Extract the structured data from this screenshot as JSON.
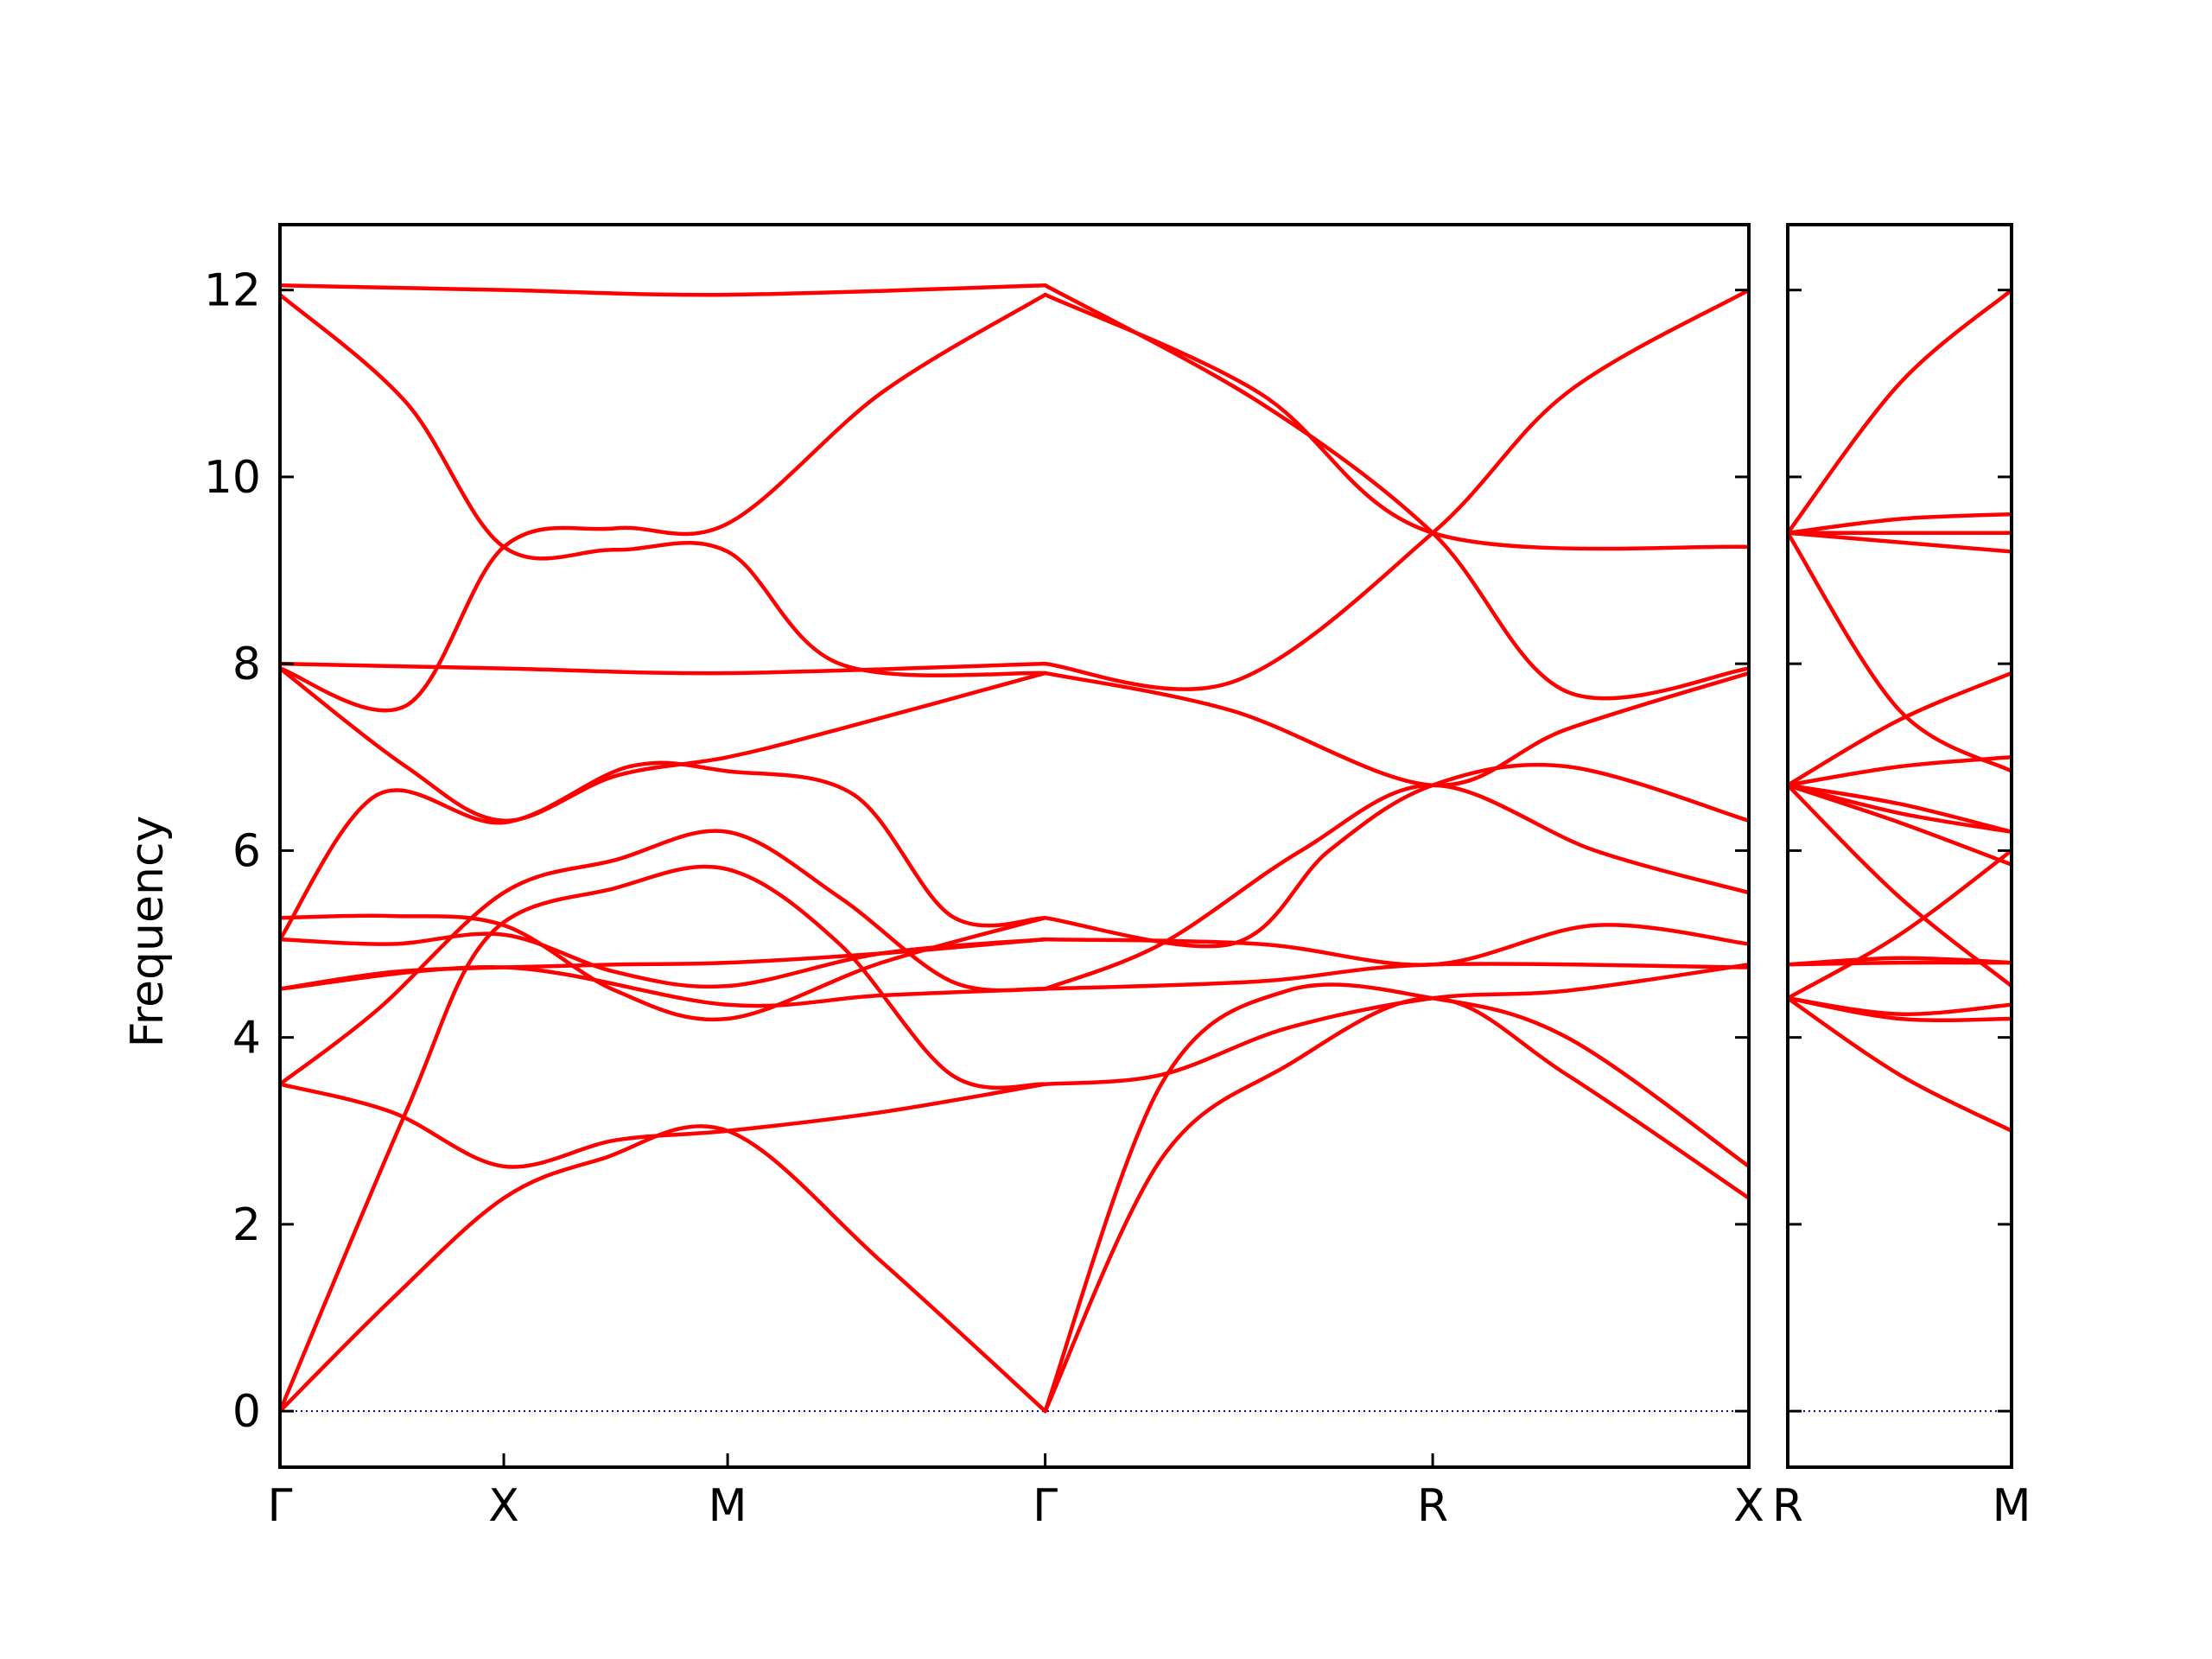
{
  "chart_data": {
    "type": "line",
    "ylabel": "Frequency",
    "ylim": [
      -0.6,
      12.7
    ],
    "yticks": [
      0,
      2,
      4,
      6,
      8,
      10,
      12
    ],
    "series_color": "#ff0000",
    "zero_line_color": "#00008b",
    "panels": [
      {
        "x_range": [
          0,
          10.5
        ],
        "ticks": [
          {
            "x": 0,
            "label": "Γ"
          },
          {
            "x": 1.6,
            "label": "X"
          },
          {
            "x": 3.2,
            "label": "M"
          },
          {
            "x": 5.47,
            "label": "Γ"
          },
          {
            "x": 8.24,
            "label": "R"
          },
          {
            "x": 10.5,
            "label": "X"
          }
        ],
        "bands": [
          [
            [
              0,
              0
            ],
            [
              0.8,
              1.2
            ],
            [
              1.6,
              2.28
            ],
            [
              2.3,
              2.7
            ],
            [
              3.2,
              3.0
            ],
            [
              4.3,
              1.6
            ],
            [
              5.47,
              0
            ]
          ],
          [
            [
              0,
              0
            ],
            [
              0.9,
              3.2
            ],
            [
              1.5,
              5.1
            ],
            [
              2.4,
              5.6
            ],
            [
              3.2,
              5.8
            ],
            [
              4.0,
              5.0
            ],
            [
              4.8,
              3.6
            ],
            [
              5.47,
              3.5
            ]
          ],
          [
            [
              0,
              3.5
            ],
            [
              0.8,
              3.2
            ],
            [
              1.6,
              2.62
            ],
            [
              2.4,
              2.9
            ],
            [
              3.2,
              3.0
            ],
            [
              4.3,
              3.2
            ],
            [
              5.47,
              3.5
            ]
          ],
          [
            [
              0,
              3.5
            ],
            [
              0.7,
              4.3
            ],
            [
              1.6,
              5.55
            ],
            [
              2.4,
              5.9
            ],
            [
              3.2,
              6.2
            ],
            [
              4.0,
              5.5
            ],
            [
              4.8,
              4.6
            ],
            [
              5.47,
              4.52
            ]
          ],
          [
            [
              0,
              4.52
            ],
            [
              0.8,
              4.7
            ],
            [
              1.6,
              4.75
            ],
            [
              2.4,
              4.78
            ],
            [
              3.2,
              4.8
            ],
            [
              4.3,
              4.9
            ],
            [
              5.47,
              5.05
            ]
          ],
          [
            [
              0,
              4.52
            ],
            [
              1.6,
              4.75
            ],
            [
              3.2,
              4.35
            ],
            [
              4.3,
              4.45
            ],
            [
              5.47,
              4.52
            ]
          ],
          [
            [
              0,
              5.05
            ],
            [
              0.8,
              5.0
            ],
            [
              1.6,
              5.1
            ],
            [
              2.4,
              4.7
            ],
            [
              3.2,
              4.55
            ],
            [
              4.3,
              4.9
            ],
            [
              5.47,
              5.05
            ]
          ],
          [
            [
              0,
              5.05
            ],
            [
              0.7,
              6.6
            ],
            [
              1.6,
              6.3
            ],
            [
              2.5,
              6.9
            ],
            [
              3.2,
              6.85
            ],
            [
              4.1,
              6.6
            ],
            [
              4.8,
              5.3
            ],
            [
              5.47,
              5.28
            ]
          ],
          [
            [
              0,
              5.28
            ],
            [
              0.8,
              5.3
            ],
            [
              1.6,
              5.2
            ],
            [
              2.4,
              4.5
            ],
            [
              3.2,
              4.2
            ],
            [
              4.3,
              4.8
            ],
            [
              5.47,
              5.28
            ]
          ],
          [
            [
              0,
              7.95
            ],
            [
              0.9,
              7.55
            ],
            [
              1.6,
              9.25
            ],
            [
              2.4,
              9.45
            ],
            [
              3.2,
              9.5
            ],
            [
              4.3,
              10.9
            ],
            [
              5.47,
              11.95
            ]
          ],
          [
            [
              0,
              7.95
            ],
            [
              0.9,
              6.9
            ],
            [
              1.6,
              6.32
            ],
            [
              2.4,
              6.8
            ],
            [
              3.2,
              7.0
            ],
            [
              4.0,
              7.3
            ],
            [
              5.47,
              7.9
            ]
          ],
          [
            [
              0,
              8.0
            ],
            [
              1.6,
              7.95
            ],
            [
              3.2,
              7.9
            ],
            [
              5.47,
              8.0
            ]
          ],
          [
            [
              0,
              12.05
            ],
            [
              1.6,
              12.0
            ],
            [
              3.2,
              11.95
            ],
            [
              5.47,
              12.05
            ]
          ],
          [
            [
              0,
              11.95
            ],
            [
              0.9,
              10.8
            ],
            [
              1.6,
              9.25
            ],
            [
              2.4,
              9.22
            ],
            [
              3.2,
              9.2
            ],
            [
              4.0,
              8.0
            ],
            [
              5.47,
              7.9
            ]
          ],
          [
            [
              5.47,
              0
            ],
            [
              6.3,
              2.7
            ],
            [
              7.2,
              3.7
            ],
            [
              8.24,
              4.42
            ],
            [
              9.2,
              3.6
            ],
            [
              10.5,
              2.28
            ]
          ],
          [
            [
              5.47,
              0
            ],
            [
              6.3,
              3.5
            ],
            [
              7.2,
              4.5
            ],
            [
              8.24,
              4.42
            ],
            [
              9.2,
              4.0
            ],
            [
              10.5,
              2.62
            ]
          ],
          [
            [
              5.47,
              3.5
            ],
            [
              6.3,
              3.6
            ],
            [
              7.2,
              4.1
            ],
            [
              8.24,
              4.42
            ],
            [
              9.2,
              4.5
            ],
            [
              10.5,
              4.78
            ]
          ],
          [
            [
              5.47,
              4.52
            ],
            [
              7.0,
              4.6
            ],
            [
              8.24,
              4.78
            ],
            [
              10.5,
              4.75
            ]
          ],
          [
            [
              5.47,
              5.05
            ],
            [
              7.0,
              5.0
            ],
            [
              8.24,
              4.78
            ],
            [
              9.4,
              5.2
            ],
            [
              10.5,
              5.0
            ]
          ],
          [
            [
              5.47,
              5.28
            ],
            [
              6.8,
              5.0
            ],
            [
              7.5,
              6.0
            ],
            [
              8.24,
              6.7
            ],
            [
              9.2,
              6.9
            ],
            [
              10.5,
              6.32
            ]
          ],
          [
            [
              5.47,
              4.52
            ],
            [
              6.3,
              5.0
            ],
            [
              7.3,
              6.0
            ],
            [
              8.24,
              6.7
            ],
            [
              9.4,
              6.0
            ],
            [
              10.5,
              5.55
            ]
          ],
          [
            [
              5.47,
              7.9
            ],
            [
              6.8,
              7.5
            ],
            [
              8.24,
              6.7
            ],
            [
              9.2,
              7.3
            ],
            [
              10.5,
              7.9
            ]
          ],
          [
            [
              5.47,
              8.0
            ],
            [
              6.8,
              7.8
            ],
            [
              8.24,
              9.4
            ],
            [
              9.2,
              10.9
            ],
            [
              10.5,
              12.0
            ]
          ],
          [
            [
              5.47,
              12.05
            ],
            [
              7.0,
              10.8
            ],
            [
              8.24,
              9.4
            ],
            [
              9.2,
              7.7
            ],
            [
              10.5,
              7.95
            ]
          ],
          [
            [
              5.47,
              11.95
            ],
            [
              7.0,
              10.9
            ],
            [
              8.24,
              9.4
            ],
            [
              10.5,
              9.25
            ]
          ]
        ]
      },
      {
        "x_range": [
          0,
          1.6
        ],
        "ticks": [
          {
            "x": 0,
            "label": "R"
          },
          {
            "x": 1.6,
            "label": "M"
          }
        ],
        "bands": [
          [
            [
              0,
              4.42
            ],
            [
              0.8,
              3.6
            ],
            [
              1.6,
              3.0
            ]
          ],
          [
            [
              0,
              4.42
            ],
            [
              0.8,
              4.2
            ],
            [
              1.6,
              4.2
            ]
          ],
          [
            [
              0,
              4.42
            ],
            [
              0.8,
              4.25
            ],
            [
              1.6,
              4.35
            ]
          ],
          [
            [
              0,
              4.78
            ],
            [
              0.8,
              4.85
            ],
            [
              1.6,
              4.8
            ]
          ],
          [
            [
              0,
              4.78
            ],
            [
              0.8,
              4.8
            ],
            [
              1.6,
              4.8
            ]
          ],
          [
            [
              0,
              4.42
            ],
            [
              0.8,
              5.1
            ],
            [
              1.6,
              6.0
            ]
          ],
          [
            [
              0,
              6.7
            ],
            [
              0.8,
              5.5
            ],
            [
              1.6,
              4.55
            ]
          ],
          [
            [
              0,
              6.7
            ],
            [
              0.8,
              6.3
            ],
            [
              1.6,
              5.85
            ]
          ],
          [
            [
              0,
              6.7
            ],
            [
              0.8,
              6.4
            ],
            [
              1.6,
              6.2
            ]
          ],
          [
            [
              0,
              6.7
            ],
            [
              0.8,
              6.5
            ],
            [
              1.6,
              6.2
            ]
          ],
          [
            [
              0,
              6.7
            ],
            [
              0.8,
              6.9
            ],
            [
              1.6,
              7.0
            ]
          ],
          [
            [
              0,
              6.7
            ],
            [
              0.8,
              7.4
            ],
            [
              1.6,
              7.9
            ]
          ],
          [
            [
              0,
              9.4
            ],
            [
              0.8,
              7.5
            ],
            [
              1.6,
              6.85
            ]
          ],
          [
            [
              0,
              9.4
            ],
            [
              0.8,
              9.3
            ],
            [
              1.6,
              9.2
            ]
          ],
          [
            [
              0,
              9.4
            ],
            [
              0.8,
              9.4
            ],
            [
              1.6,
              9.4
            ]
          ],
          [
            [
              0,
              9.4
            ],
            [
              0.8,
              9.55
            ],
            [
              1.6,
              9.6
            ]
          ],
          [
            [
              0,
              9.4
            ],
            [
              0.8,
              11.0
            ],
            [
              1.6,
              12.0
            ]
          ]
        ]
      }
    ]
  }
}
